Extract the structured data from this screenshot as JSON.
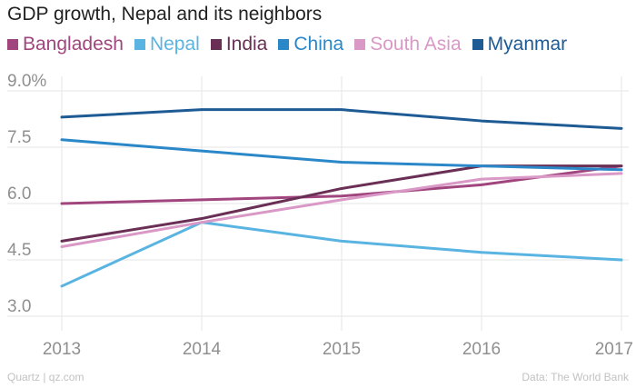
{
  "chart_data": {
    "type": "line",
    "title": "GDP growth, Nepal and its neighbors",
    "xlabel": "",
    "ylabel": "",
    "x": [
      "2013",
      "2014",
      "2015",
      "2016",
      "2017"
    ],
    "xlim": [
      2013,
      2017
    ],
    "ylim": [
      3.0,
      9.0
    ],
    "y_ticks": [
      "3.0",
      "4.5",
      "6.0",
      "7.5",
      "9.0%"
    ],
    "y_tick_values": [
      3.0,
      4.5,
      6.0,
      7.5,
      9.0
    ],
    "grid": true,
    "legend_position": "top",
    "series": [
      {
        "name": "Bangladesh",
        "color": "#a1457f",
        "values": [
          6.0,
          6.1,
          6.2,
          6.5,
          7.0
        ]
      },
      {
        "name": "Nepal",
        "color": "#5ab4e2",
        "values": [
          3.8,
          5.5,
          5.0,
          4.7,
          4.5
        ]
      },
      {
        "name": "India",
        "color": "#6a2f55",
        "values": [
          5.0,
          5.6,
          6.4,
          7.0,
          7.0
        ]
      },
      {
        "name": "China",
        "color": "#2a88c8",
        "values": [
          7.7,
          7.4,
          7.1,
          7.0,
          6.9
        ]
      },
      {
        "name": "South Asia",
        "color": "#d998c6",
        "values": [
          4.85,
          5.5,
          6.1,
          6.65,
          6.8
        ]
      },
      {
        "name": "Myanmar",
        "color": "#1e5b95",
        "values": [
          8.3,
          8.5,
          8.5,
          8.2,
          8.0
        ]
      }
    ]
  },
  "footer": {
    "source_left": "Quartz | qz.com",
    "source_right": "Data: The World Bank"
  }
}
